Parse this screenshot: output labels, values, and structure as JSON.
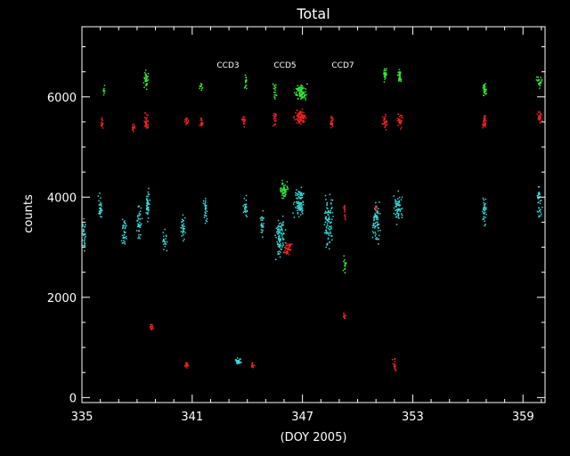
{
  "chart_data": {
    "type": "scatter",
    "title": "Total",
    "xlabel": "(DOY 2005)",
    "ylabel": "counts",
    "xlim": [
      335,
      360.2
    ],
    "ylim": [
      -100,
      7400
    ],
    "xticks": [
      335,
      341,
      347,
      353,
      359
    ],
    "yticks": [
      0,
      2000,
      4000,
      6000
    ],
    "grid": false,
    "legend_placement": "top-center",
    "series": [
      {
        "name": "CCD3",
        "color": "#33dddd",
        "clusters": [
          {
            "x": 335.1,
            "y": 3300,
            "dx": 0.15,
            "dy": 400,
            "n": 30
          },
          {
            "x": 336.0,
            "y": 3800,
            "dx": 0.15,
            "dy": 350,
            "n": 30
          },
          {
            "x": 337.3,
            "y": 3300,
            "dx": 0.2,
            "dy": 400,
            "n": 35
          },
          {
            "x": 338.1,
            "y": 3500,
            "dx": 0.2,
            "dy": 500,
            "n": 40
          },
          {
            "x": 338.6,
            "y": 3800,
            "dx": 0.15,
            "dy": 500,
            "n": 40
          },
          {
            "x": 339.5,
            "y": 3100,
            "dx": 0.15,
            "dy": 300,
            "n": 20
          },
          {
            "x": 340.5,
            "y": 3400,
            "dx": 0.15,
            "dy": 450,
            "n": 30
          },
          {
            "x": 341.7,
            "y": 3800,
            "dx": 0.15,
            "dy": 450,
            "n": 30
          },
          {
            "x": 343.9,
            "y": 3800,
            "dx": 0.15,
            "dy": 350,
            "n": 25
          },
          {
            "x": 344.8,
            "y": 3400,
            "dx": 0.15,
            "dy": 400,
            "n": 25
          },
          {
            "x": 345.8,
            "y": 3200,
            "dx": 0.35,
            "dy": 550,
            "n": 90
          },
          {
            "x": 346.8,
            "y": 3900,
            "dx": 0.4,
            "dy": 450,
            "n": 90
          },
          {
            "x": 348.4,
            "y": 3500,
            "dx": 0.35,
            "dy": 700,
            "n": 90
          },
          {
            "x": 351.0,
            "y": 3500,
            "dx": 0.35,
            "dy": 500,
            "n": 70
          },
          {
            "x": 352.2,
            "y": 3800,
            "dx": 0.3,
            "dy": 450,
            "n": 60
          },
          {
            "x": 356.9,
            "y": 3700,
            "dx": 0.15,
            "dy": 450,
            "n": 35
          },
          {
            "x": 359.9,
            "y": 3900,
            "dx": 0.2,
            "dy": 400,
            "n": 35
          },
          {
            "x": 343.5,
            "y": 720,
            "dx": 0.2,
            "dy": 80,
            "n": 35
          }
        ]
      },
      {
        "name": "CCD5",
        "color": "#33ee33",
        "clusters": [
          {
            "x": 336.2,
            "y": 6100,
            "dx": 0.08,
            "dy": 150,
            "n": 8
          },
          {
            "x": 338.5,
            "y": 6350,
            "dx": 0.2,
            "dy": 250,
            "n": 35
          },
          {
            "x": 341.5,
            "y": 6200,
            "dx": 0.1,
            "dy": 150,
            "n": 10
          },
          {
            "x": 343.9,
            "y": 6300,
            "dx": 0.12,
            "dy": 200,
            "n": 15
          },
          {
            "x": 345.5,
            "y": 6100,
            "dx": 0.12,
            "dy": 250,
            "n": 18
          },
          {
            "x": 346.9,
            "y": 6100,
            "dx": 0.4,
            "dy": 250,
            "n": 80
          },
          {
            "x": 346.0,
            "y": 4150,
            "dx": 0.3,
            "dy": 220,
            "n": 50
          },
          {
            "x": 351.5,
            "y": 6450,
            "dx": 0.15,
            "dy": 200,
            "n": 30
          },
          {
            "x": 352.3,
            "y": 6400,
            "dx": 0.15,
            "dy": 200,
            "n": 30
          },
          {
            "x": 356.9,
            "y": 6150,
            "dx": 0.15,
            "dy": 200,
            "n": 30
          },
          {
            "x": 359.9,
            "y": 6300,
            "dx": 0.2,
            "dy": 150,
            "n": 25
          },
          {
            "x": 349.3,
            "y": 2600,
            "dx": 0.1,
            "dy": 300,
            "n": 15
          }
        ]
      },
      {
        "name": "CCD7",
        "color": "#ee2222",
        "clusters": [
          {
            "x": 336.1,
            "y": 5500,
            "dx": 0.12,
            "dy": 150,
            "n": 15
          },
          {
            "x": 337.8,
            "y": 5400,
            "dx": 0.12,
            "dy": 150,
            "n": 15
          },
          {
            "x": 338.5,
            "y": 5500,
            "dx": 0.2,
            "dy": 200,
            "n": 35
          },
          {
            "x": 340.7,
            "y": 5500,
            "dx": 0.15,
            "dy": 150,
            "n": 20
          },
          {
            "x": 341.5,
            "y": 5500,
            "dx": 0.12,
            "dy": 150,
            "n": 15
          },
          {
            "x": 343.8,
            "y": 5500,
            "dx": 0.12,
            "dy": 150,
            "n": 20
          },
          {
            "x": 345.5,
            "y": 5550,
            "dx": 0.12,
            "dy": 200,
            "n": 20
          },
          {
            "x": 346.9,
            "y": 5600,
            "dx": 0.4,
            "dy": 200,
            "n": 80
          },
          {
            "x": 348.6,
            "y": 5500,
            "dx": 0.12,
            "dy": 150,
            "n": 20
          },
          {
            "x": 351.5,
            "y": 5500,
            "dx": 0.2,
            "dy": 200,
            "n": 30
          },
          {
            "x": 352.3,
            "y": 5500,
            "dx": 0.2,
            "dy": 200,
            "n": 30
          },
          {
            "x": 356.9,
            "y": 5500,
            "dx": 0.15,
            "dy": 200,
            "n": 30
          },
          {
            "x": 359.9,
            "y": 5600,
            "dx": 0.2,
            "dy": 150,
            "n": 30
          },
          {
            "x": 346.2,
            "y": 2950,
            "dx": 0.25,
            "dy": 180,
            "n": 45
          },
          {
            "x": 349.3,
            "y": 3700,
            "dx": 0.1,
            "dy": 250,
            "n": 15
          },
          {
            "x": 349.3,
            "y": 1600,
            "dx": 0.1,
            "dy": 150,
            "n": 12
          },
          {
            "x": 338.8,
            "y": 1400,
            "dx": 0.12,
            "dy": 120,
            "n": 15
          },
          {
            "x": 340.7,
            "y": 650,
            "dx": 0.12,
            "dy": 70,
            "n": 18
          },
          {
            "x": 344.3,
            "y": 650,
            "dx": 0.12,
            "dy": 70,
            "n": 18
          },
          {
            "x": 352.0,
            "y": 650,
            "dx": 0.12,
            "dy": 180,
            "n": 15
          },
          {
            "x": 351.0,
            "y": 3750,
            "dx": 0.1,
            "dy": 120,
            "n": 10
          }
        ]
      }
    ]
  }
}
